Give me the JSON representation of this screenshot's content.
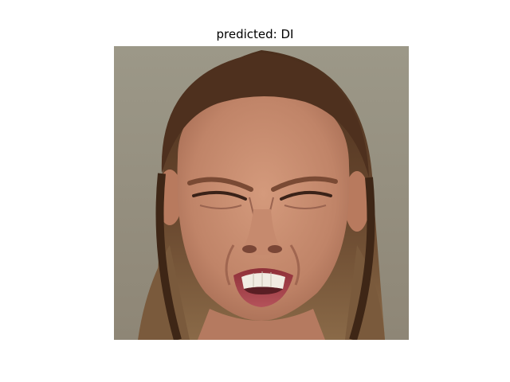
{
  "figure": {
    "title": "predicted: DI"
  },
  "image": {
    "icon": "face-photo-icon",
    "colors": {
      "background": "#9a9585",
      "skin": "#c98e72",
      "hair": "#5a3a24",
      "lips": "#a8414a"
    }
  }
}
